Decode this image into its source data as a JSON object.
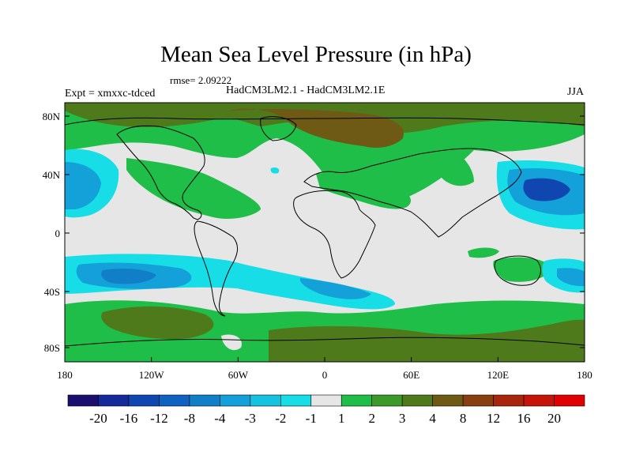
{
  "title": "Mean Sea Level Pressure (in hPa)",
  "rmse_label": "rmse= 2.09222",
  "expt_label": "Expt = xmxxc-tdced",
  "experiment_label": "HadCM3LM2.1 - HadCM3LM2.1E",
  "season": "JJA",
  "lat_labels": [
    "80N",
    "40N",
    "0",
    "40S",
    "80S"
  ],
  "lon_labels": [
    "180",
    "120W",
    "60W",
    "0",
    "60E",
    "120E",
    "180"
  ],
  "colorbar": {
    "labels": [
      "-20",
      "-16",
      "-12",
      "-8",
      "-4",
      "-3",
      "-2",
      "-1",
      "1",
      "2",
      "3",
      "4",
      "8",
      "12",
      "16",
      "20"
    ],
    "colors": [
      "#1a0e6e",
      "#142a9a",
      "#1046b0",
      "#0f62c0",
      "#117fc8",
      "#14a0d8",
      "#15c2e0",
      "#17dde6",
      "#e6e6e6",
      "#1fbe48",
      "#3c9a2a",
      "#4f7a1c",
      "#6e5a14",
      "#8a3f10",
      "#a8260c",
      "#c61408",
      "#e00202"
    ]
  },
  "map_colors": {
    "neutral": "#e6e6e6",
    "green": "#1fbe48",
    "dark_green": "#4f7a1c",
    "brown": "#6e5a14",
    "light_blue": "#17dde6",
    "mid_blue": "#14a0d8",
    "blue": "#117fc8",
    "deep_blue": "#1046b0"
  }
}
